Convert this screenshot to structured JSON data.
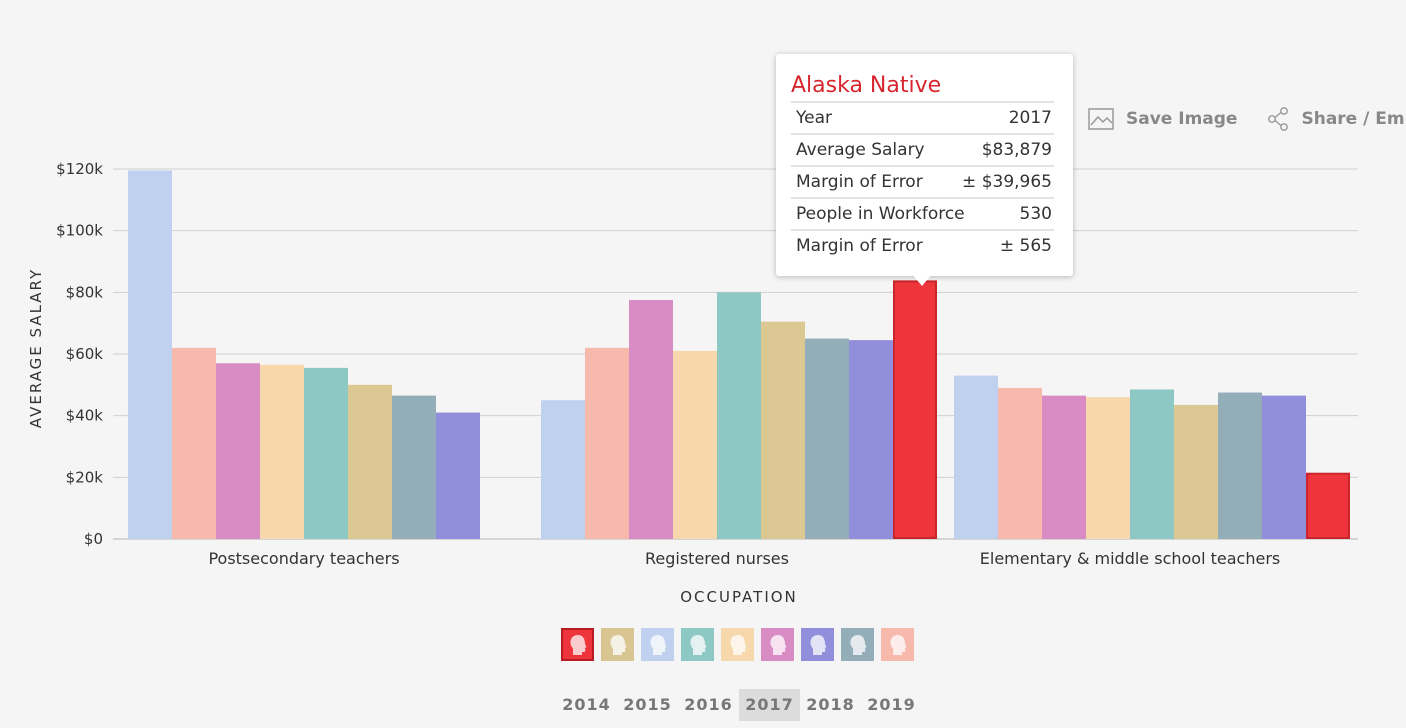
{
  "chart_data": {
    "type": "bar",
    "xlabel": "OCCUPATION",
    "ylabel": "AVERAGE SALARY",
    "ylim": [
      0,
      120000
    ],
    "yticks": [
      0,
      20000,
      40000,
      60000,
      80000,
      100000,
      120000
    ],
    "ytick_labels": [
      "$0",
      "$20k",
      "$40k",
      "$60k",
      "$80k",
      "$100k",
      "$120k"
    ],
    "grid": true,
    "categories": [
      "Postsecondary teachers",
      "Registered nurses",
      "Elementary & middle school teachers"
    ],
    "series": [
      {
        "color": "#bfd1ef",
        "values": [
          119500,
          45000,
          53000
        ]
      },
      {
        "color": "#f7b9ab",
        "values": [
          62000,
          62000,
          49000
        ]
      },
      {
        "color": "#d98bc4",
        "values": [
          57000,
          77500,
          46500
        ]
      },
      {
        "color": "#f7d8ad",
        "values": [
          56500,
          61000,
          46000
        ]
      },
      {
        "color": "#8ec8c4",
        "values": [
          55500,
          80000,
          48500
        ]
      },
      {
        "color": "#dbc893",
        "values": [
          50000,
          70500,
          43500
        ]
      },
      {
        "color": "#93adb9",
        "values": [
          46500,
          65000,
          47500
        ]
      },
      {
        "color": "#918fdb",
        "values": [
          41000,
          64500,
          46500
        ]
      },
      {
        "color": "#ee353b",
        "stroke": "#c9262b",
        "values": [
          null,
          83879,
          21500
        ]
      }
    ]
  },
  "toolbar": {
    "save_label": "Save Image",
    "share_label": "Share / Embed"
  },
  "tooltip": {
    "title": "Alaska Native",
    "rows": [
      {
        "label": "Year",
        "value": "2017"
      },
      {
        "label": "Average Salary",
        "value": "$83,879"
      },
      {
        "label": "Margin of Error",
        "value": "± $39,965"
      },
      {
        "label": "People in Workforce",
        "value": "530"
      },
      {
        "label": "Margin of Error",
        "value": "± 565"
      }
    ]
  },
  "legend": {
    "icon": "person-head-icon",
    "colors": [
      "#ee353b",
      "#d8c592",
      "#bfd1ef",
      "#8ec8c4",
      "#f7d8ad",
      "#d98bc4",
      "#918fdb",
      "#93adb9",
      "#f7b9ab"
    ]
  },
  "years": {
    "items": [
      "2014",
      "2015",
      "2016",
      "2017",
      "2018",
      "2019"
    ],
    "selected": "2017"
  }
}
